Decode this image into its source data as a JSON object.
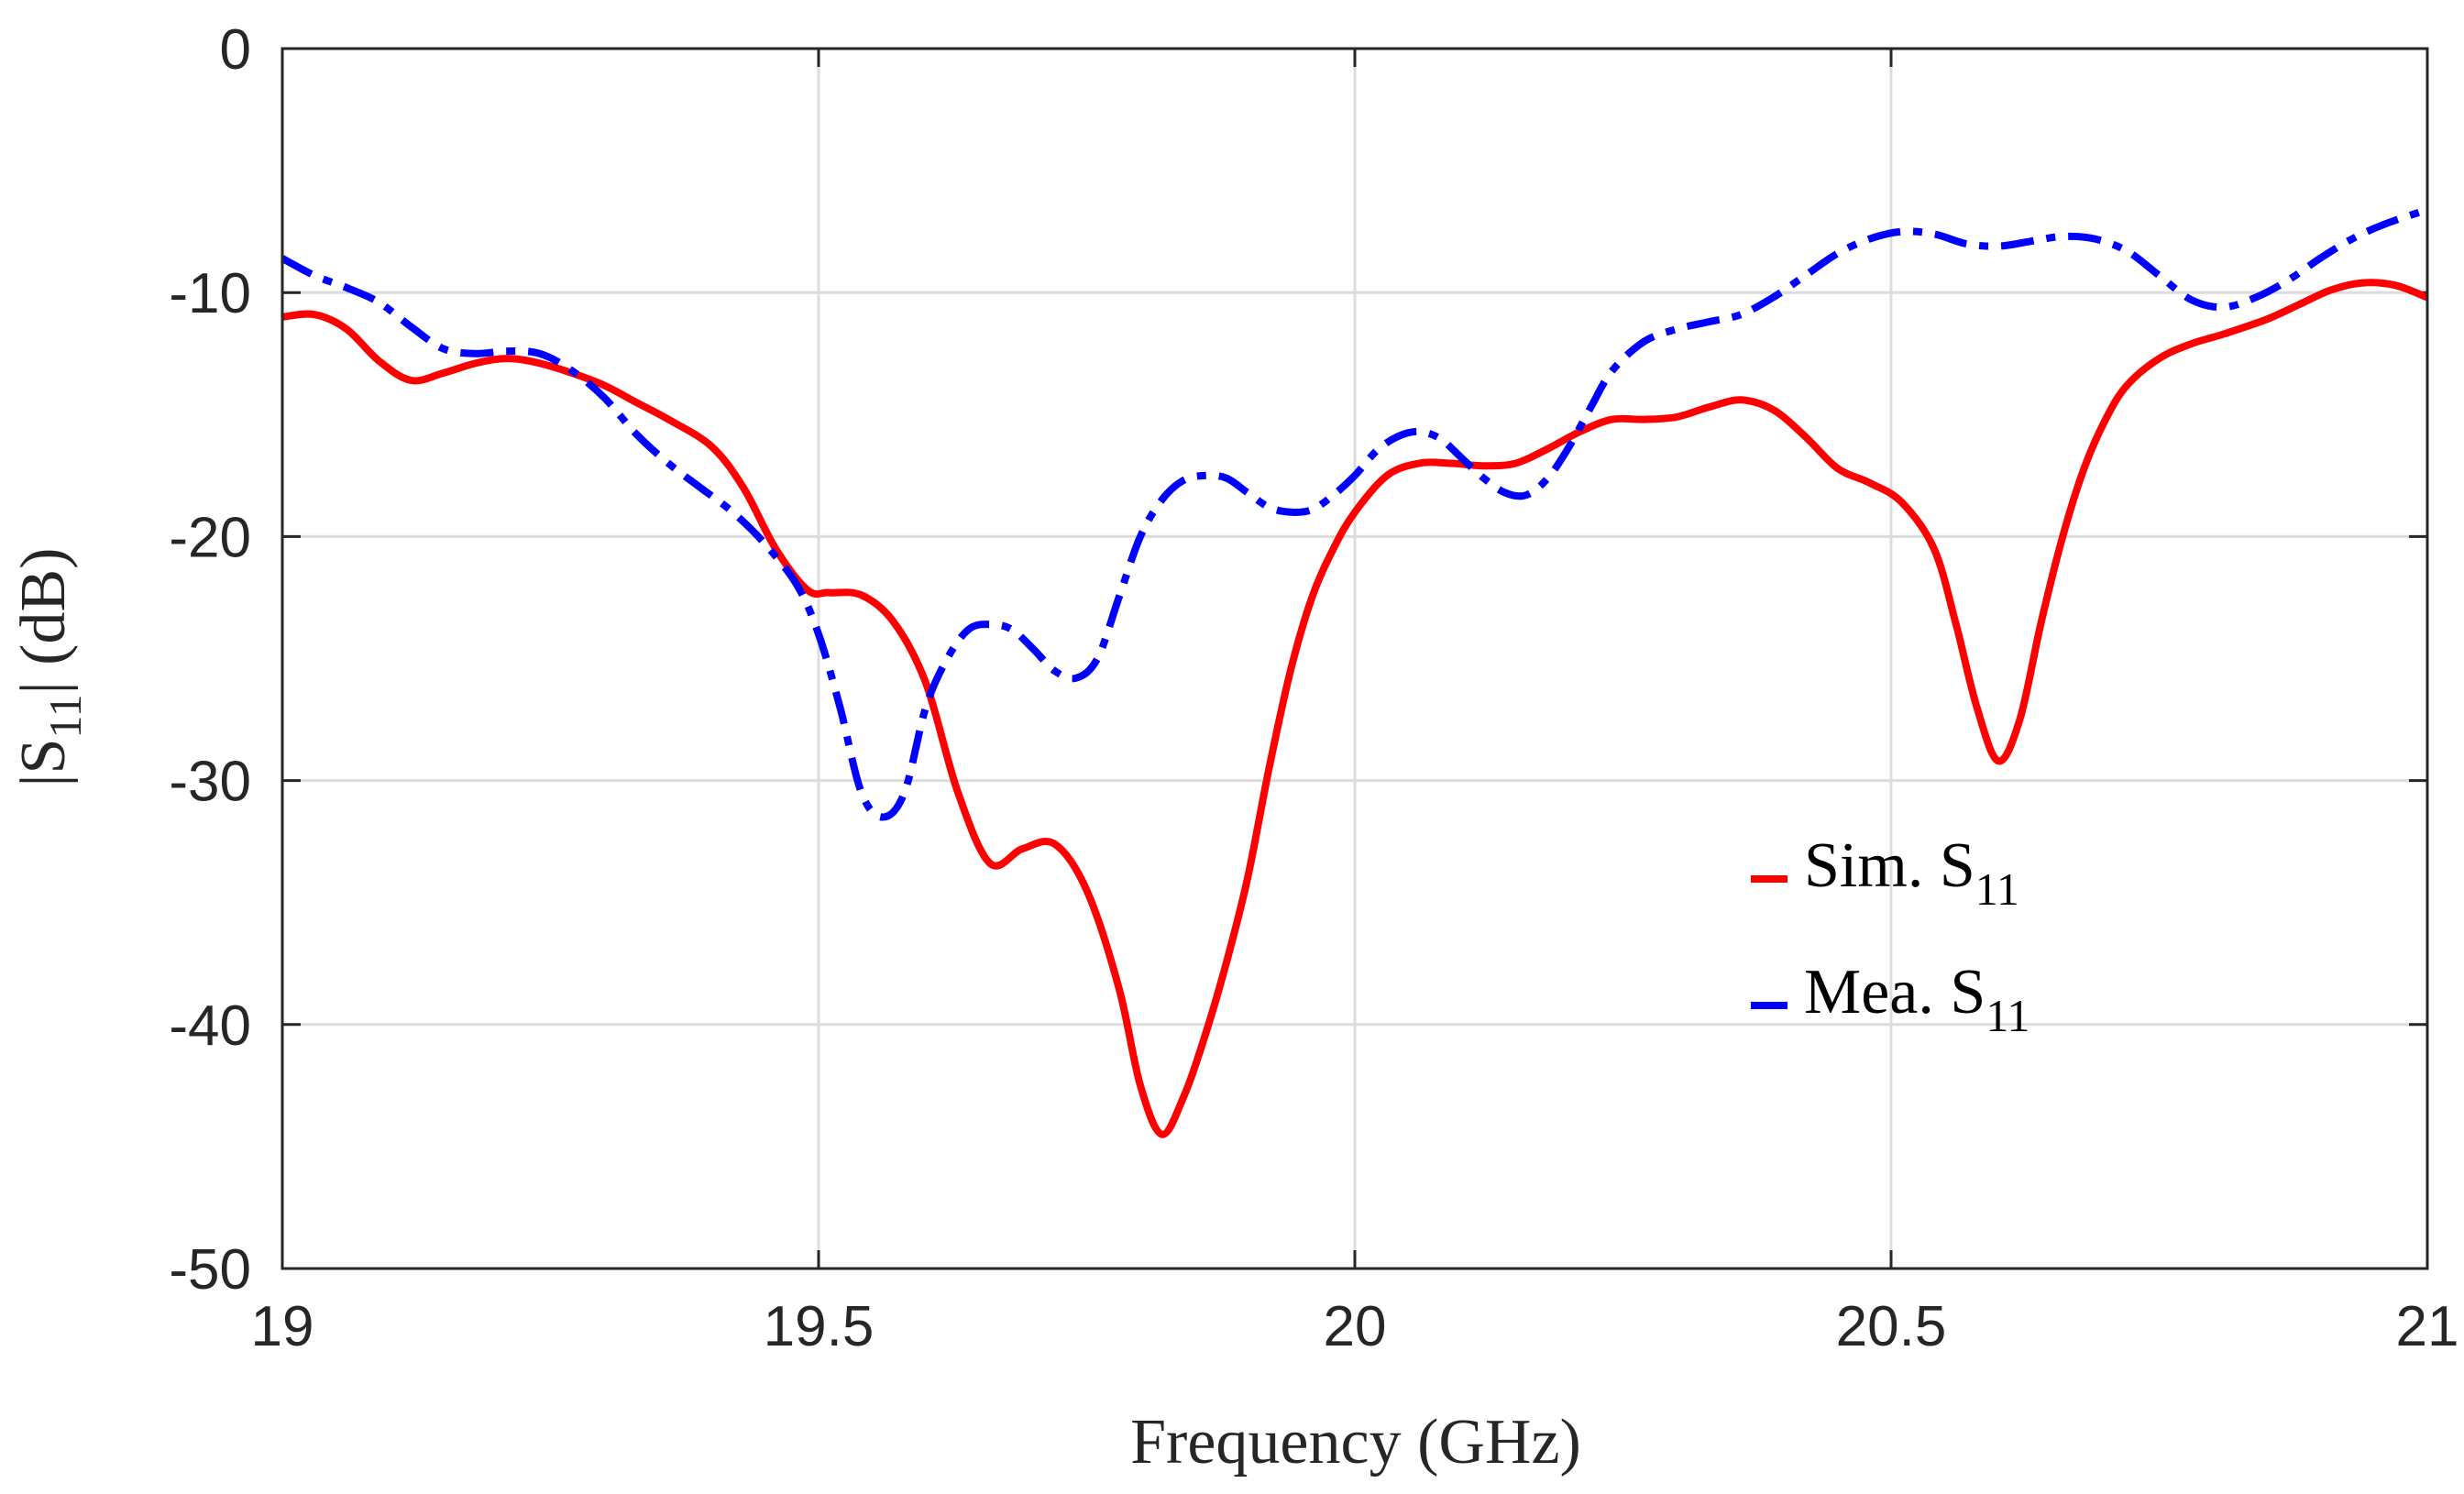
{
  "chart_data": {
    "type": "line",
    "xlabel": "Frequency (GHz)",
    "ylabel": {
      "main": "|S",
      "sub": "11",
      "end": "| (dB)"
    },
    "xlim": [
      19,
      21
    ],
    "ylim": [
      -50,
      0
    ],
    "xticks": [
      19,
      19.5,
      20,
      20.5,
      21
    ],
    "xtick_labels": [
      "19",
      "19.5",
      "20",
      "20.5",
      "21"
    ],
    "yticks": [
      0,
      -10,
      -20,
      -30,
      -40,
      -50
    ],
    "ytick_labels": [
      "0",
      "-10",
      "-20",
      "-30",
      "-40",
      "-50"
    ],
    "grid": true,
    "legend_position": "right",
    "series": [
      {
        "name": "Sim. S11",
        "legend": {
          "main": "Sim. S",
          "sub": "11"
        },
        "color": "#ff0000",
        "style": "solid",
        "x": [
          19.0,
          19.03,
          19.06,
          19.09,
          19.12,
          19.15,
          19.18,
          19.21,
          19.24,
          19.27,
          19.3,
          19.33,
          19.36,
          19.4,
          19.43,
          19.46,
          19.49,
          19.51,
          19.54,
          19.57,
          19.6,
          19.63,
          19.66,
          19.69,
          19.72,
          19.75,
          19.78,
          19.8,
          19.82,
          19.84,
          19.86,
          19.88,
          19.9,
          19.92,
          19.94,
          19.96,
          19.98,
          20.0,
          20.03,
          20.06,
          20.09,
          20.12,
          20.15,
          20.18,
          20.21,
          20.24,
          20.27,
          20.3,
          20.33,
          20.36,
          20.39,
          20.42,
          20.45,
          20.48,
          20.51,
          20.54,
          20.56,
          20.58,
          20.6,
          20.62,
          20.64,
          20.66,
          20.68,
          20.7,
          20.72,
          20.75,
          20.78,
          20.81,
          20.85,
          20.88,
          20.91,
          20.94,
          20.97,
          21.0
        ],
        "y": [
          -11.0,
          -10.9,
          -11.5,
          -12.8,
          -13.6,
          -13.3,
          -12.9,
          -12.7,
          -12.9,
          -13.3,
          -13.8,
          -14.5,
          -15.2,
          -16.3,
          -18.0,
          -20.5,
          -22.2,
          -22.3,
          -22.4,
          -23.5,
          -26.0,
          -30.5,
          -33.4,
          -32.8,
          -32.6,
          -34.5,
          -38.5,
          -42.5,
          -44.5,
          -43.0,
          -40.5,
          -37.5,
          -34.0,
          -29.5,
          -25.5,
          -22.5,
          -20.5,
          -19.0,
          -17.5,
          -17.0,
          -17.0,
          -17.1,
          -17.0,
          -16.4,
          -15.7,
          -15.2,
          -15.2,
          -15.1,
          -14.7,
          -14.4,
          -14.8,
          -15.9,
          -17.2,
          -17.8,
          -18.6,
          -20.5,
          -23.5,
          -27.0,
          -29.2,
          -27.5,
          -23.5,
          -20.0,
          -17.2,
          -15.2,
          -13.8,
          -12.7,
          -12.1,
          -11.7,
          -11.1,
          -10.5,
          -9.9,
          -9.6,
          -9.7,
          -10.2
        ]
      },
      {
        "name": "Mea. S11",
        "legend": {
          "main": "Mea. S",
          "sub": "11"
        },
        "color": "#0000ff",
        "style": "dashdot",
        "x": [
          19.0,
          19.03,
          19.06,
          19.09,
          19.12,
          19.15,
          19.18,
          19.21,
          19.24,
          19.27,
          19.3,
          19.33,
          19.36,
          19.39,
          19.42,
          19.45,
          19.48,
          19.5,
          19.52,
          19.54,
          19.56,
          19.58,
          19.6,
          19.62,
          19.64,
          19.66,
          19.68,
          19.7,
          19.72,
          19.74,
          19.76,
          19.78,
          19.8,
          19.82,
          19.84,
          19.86,
          19.88,
          19.9,
          19.92,
          19.94,
          19.96,
          19.98,
          20.0,
          20.02,
          20.04,
          20.06,
          20.08,
          20.1,
          20.12,
          20.14,
          20.16,
          20.18,
          20.2,
          20.22,
          20.24,
          20.27,
          20.3,
          20.33,
          20.36,
          20.39,
          20.42,
          20.45,
          20.48,
          20.51,
          20.54,
          20.57,
          20.6,
          20.63,
          20.66,
          20.69,
          20.72,
          20.75,
          20.78,
          20.81,
          20.84,
          20.87,
          20.9,
          20.93,
          20.96,
          21.0
        ],
        "y": [
          -8.6,
          -9.3,
          -9.8,
          -10.4,
          -11.4,
          -12.3,
          -12.5,
          -12.4,
          -12.5,
          -13.2,
          -14.3,
          -15.8,
          -17.0,
          -18.0,
          -19.0,
          -20.3,
          -22.0,
          -24.0,
          -27.0,
          -30.5,
          -31.5,
          -30.5,
          -27.0,
          -25.0,
          -23.8,
          -23.6,
          -23.8,
          -24.6,
          -25.5,
          -25.8,
          -25.0,
          -22.5,
          -20.0,
          -18.5,
          -17.7,
          -17.5,
          -17.6,
          -18.2,
          -18.8,
          -19.0,
          -18.9,
          -18.3,
          -17.5,
          -16.5,
          -15.9,
          -15.7,
          -16.0,
          -16.8,
          -17.6,
          -18.2,
          -18.3,
          -17.6,
          -16.3,
          -14.7,
          -13.2,
          -12.0,
          -11.5,
          -11.2,
          -10.9,
          -10.2,
          -9.3,
          -8.4,
          -7.8,
          -7.5,
          -7.6,
          -8.0,
          -8.1,
          -7.9,
          -7.7,
          -7.8,
          -8.3,
          -9.3,
          -10.3,
          -10.6,
          -10.2,
          -9.5,
          -8.6,
          -7.8,
          -7.2,
          -6.6
        ]
      }
    ]
  }
}
